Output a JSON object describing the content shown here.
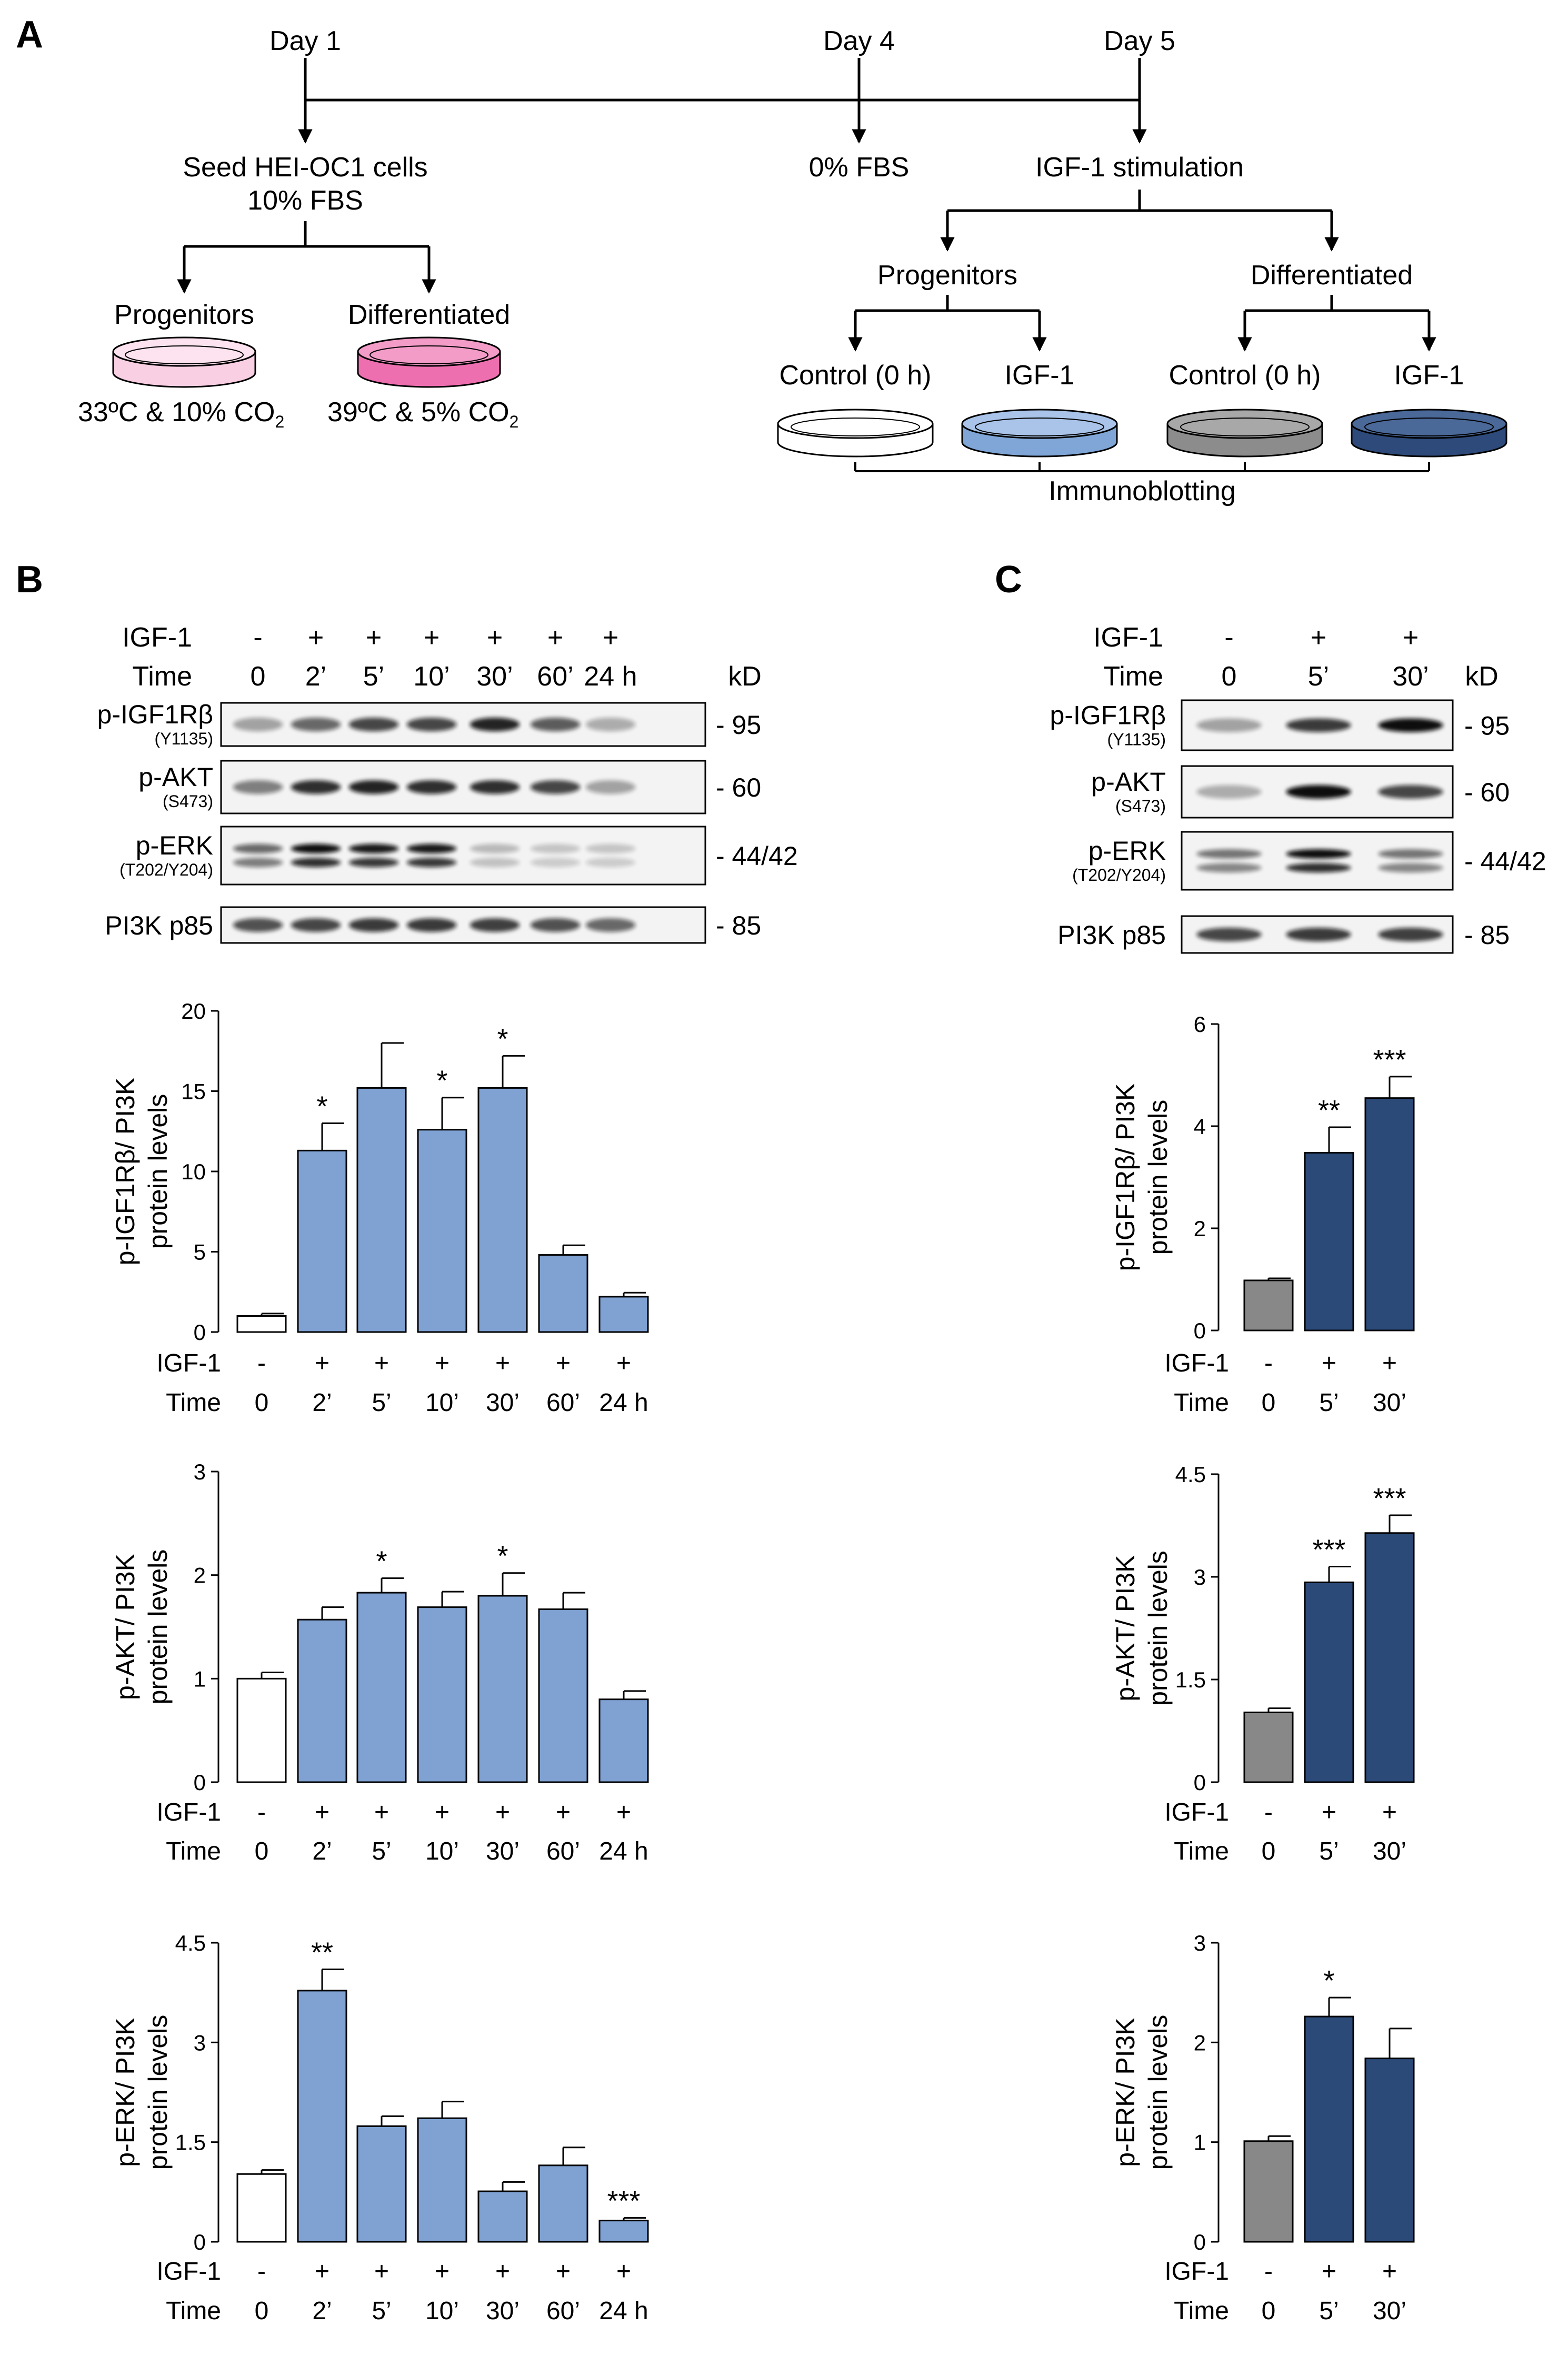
{
  "panels": {
    "A": "A",
    "B": "B",
    "C": "C"
  },
  "timeline": {
    "days": [
      "Day 1",
      "Day 4",
      "Day 5"
    ],
    "seed_line1": "Seed HEI-OC1 cells",
    "seed_line2": "10% FBS",
    "fbs0": "0% FBS",
    "igf_stim": "IGF-1 stimulation",
    "progenitors": "Progenitors",
    "differentiated": "Differentiated",
    "cond_prog": "33ºC & 10% CO",
    "cond_diff": "39ºC & 5% CO",
    "sub2": "2",
    "control": "Control (0 h)",
    "igf1": "IGF-1",
    "immunoblotting": "Immunoblotting",
    "colors": {
      "prog_dish": "#f9cfe3",
      "diff_dish": "#ee6fb0",
      "ctrl_prog": "#ffffff",
      "igf_prog": "#7fa6d6",
      "ctrl_diff": "#8c8c8c",
      "igf_diff": "#2d4a7a"
    }
  },
  "blotB": {
    "igf_label": "IGF-1",
    "time_label": "Time",
    "kd_label": "kD",
    "igf_signs": [
      "-",
      "+",
      "+",
      "+",
      "+",
      "+",
      "+"
    ],
    "times": [
      "0",
      "2’",
      "5’",
      "10’",
      "30’",
      "60’",
      "24 h"
    ],
    "rows": [
      {
        "name": "p-IGF1Rβ",
        "sub": "(Y1135)",
        "kd": "- 95"
      },
      {
        "name": "p-AKT",
        "sub": "(S473)",
        "kd": "- 60"
      },
      {
        "name": "p-ERK",
        "sub": "(T202/Y204)",
        "kd": "- 44/42"
      },
      {
        "name": "PI3K p85",
        "sub": "",
        "kd": "- 85"
      }
    ]
  },
  "blotC": {
    "igf_label": "IGF-1",
    "time_label": "Time",
    "kd_label": "kD",
    "igf_signs": [
      "-",
      "+",
      "+"
    ],
    "times": [
      "0",
      "5’",
      "30’"
    ],
    "rows": [
      {
        "name": "p-IGF1Rβ",
        "sub": "(Y1135)",
        "kd": "- 95"
      },
      {
        "name": "p-AKT",
        "sub": "(S473)",
        "kd": "- 60"
      },
      {
        "name": "p-ERK",
        "sub": "(T202/Y204)",
        "kd": "- 44/42"
      },
      {
        "name": "PI3K p85",
        "sub": "",
        "kd": "- 85"
      }
    ]
  },
  "chart_data": [
    {
      "type": "bar",
      "panel": "B",
      "categories": [
        "0",
        "2’",
        "5’",
        "10’",
        "30’",
        "60’",
        "24 h"
      ],
      "igf_signs": [
        "-",
        "+",
        "+",
        "+",
        "+",
        "+",
        "+"
      ],
      "values": [
        1.0,
        11.3,
        15.2,
        12.6,
        15.2,
        4.8,
        2.2
      ],
      "errors": [
        0.15,
        1.7,
        2.8,
        2.0,
        2.0,
        0.6,
        0.25
      ],
      "stars": [
        "",
        "*",
        "",
        "*",
        "*",
        "",
        ""
      ],
      "ylim": [
        0,
        20
      ],
      "yticks": [
        "0",
        "5",
        "10",
        "15",
        "20"
      ],
      "ylabel_line1": "p-IGF1Rβ/ PI3K",
      "ylabel_line2": "protein levels",
      "row_labels": [
        "IGF-1",
        "Time"
      ],
      "bar_colors": [
        "#ffffff",
        "#7fa2d3",
        "#7fa2d3",
        "#7fa2d3",
        "#7fa2d3",
        "#7fa2d3",
        "#7fa2d3"
      ]
    },
    {
      "type": "bar",
      "panel": "B",
      "categories": [
        "0",
        "2’",
        "5’",
        "10’",
        "30’",
        "60’",
        "24 h"
      ],
      "igf_signs": [
        "-",
        "+",
        "+",
        "+",
        "+",
        "+",
        "+"
      ],
      "values": [
        1.0,
        1.57,
        1.83,
        1.69,
        1.8,
        1.67,
        0.8
      ],
      "errors": [
        0.06,
        0.12,
        0.14,
        0.15,
        0.22,
        0.16,
        0.08
      ],
      "stars": [
        "",
        "",
        "*",
        "",
        "*",
        "",
        ""
      ],
      "ylim": [
        0,
        3
      ],
      "yticks": [
        "0",
        "1",
        "2",
        "3"
      ],
      "ylabel_line1": "p-AKT/ PI3K",
      "ylabel_line2": "protein levels",
      "row_labels": [
        "IGF-1",
        "Time"
      ],
      "bar_colors": [
        "#ffffff",
        "#7fa2d3",
        "#7fa2d3",
        "#7fa2d3",
        "#7fa2d3",
        "#7fa2d3",
        "#7fa2d3"
      ]
    },
    {
      "type": "bar",
      "panel": "B",
      "categories": [
        "0",
        "2’",
        "5’",
        "10’",
        "30’",
        "60’",
        "24 h"
      ],
      "igf_signs": [
        "-",
        "+",
        "+",
        "+",
        "+",
        "+",
        "+"
      ],
      "values": [
        1.02,
        3.78,
        1.74,
        1.86,
        0.76,
        1.15,
        0.32
      ],
      "errors": [
        0.06,
        0.32,
        0.15,
        0.25,
        0.14,
        0.27,
        0.04
      ],
      "stars": [
        "",
        "**",
        "",
        "",
        "",
        "",
        "***"
      ],
      "ylim": [
        0,
        4.5
      ],
      "yticks": [
        "0",
        "1.5",
        "3",
        "4.5"
      ],
      "ylabel_line1": "p-ERK/ PI3K",
      "ylabel_line2": "protein levels",
      "row_labels": [
        "IGF-1",
        "Time"
      ],
      "bar_colors": [
        "#ffffff",
        "#7fa2d3",
        "#7fa2d3",
        "#7fa2d3",
        "#7fa2d3",
        "#7fa2d3",
        "#7fa2d3"
      ]
    },
    {
      "type": "bar",
      "panel": "C",
      "categories": [
        "0",
        "5’",
        "30’"
      ],
      "igf_signs": [
        "-",
        "+",
        "+"
      ],
      "values": [
        0.98,
        3.48,
        4.55
      ],
      "errors": [
        0.04,
        0.5,
        0.42
      ],
      "stars": [
        "",
        "**",
        "***"
      ],
      "ylim": [
        0,
        6
      ],
      "yticks": [
        "0",
        "2",
        "4",
        "6"
      ],
      "ylabel_line1": "p-IGF1Rβ/ PI3K",
      "ylabel_line2": "protein levels",
      "row_labels": [
        "IGF-1",
        "Time"
      ],
      "bar_colors": [
        "#888888",
        "#2c4a78",
        "#2c4a78"
      ]
    },
    {
      "type": "bar",
      "panel": "C",
      "categories": [
        "0",
        "5’",
        "30’"
      ],
      "igf_signs": [
        "-",
        "+",
        "+"
      ],
      "values": [
        1.02,
        2.92,
        3.64
      ],
      "errors": [
        0.06,
        0.23,
        0.26
      ],
      "stars": [
        "",
        "***",
        "***"
      ],
      "ylim": [
        0,
        4.5
      ],
      "yticks": [
        "0",
        "1.5",
        "3",
        "4.5"
      ],
      "ylabel_line1": "p-AKT/ PI3K",
      "ylabel_line2": "protein levels",
      "row_labels": [
        "IGF-1",
        "Time"
      ],
      "bar_colors": [
        "#888888",
        "#2c4a78",
        "#2c4a78"
      ]
    },
    {
      "type": "bar",
      "panel": "C",
      "categories": [
        "0",
        "5’",
        "30’"
      ],
      "igf_signs": [
        "-",
        "+",
        "+"
      ],
      "values": [
        1.01,
        2.26,
        1.84
      ],
      "errors": [
        0.05,
        0.19,
        0.3
      ],
      "stars": [
        "",
        "*",
        ""
      ],
      "ylim": [
        0,
        3
      ],
      "yticks": [
        "0",
        "1",
        "2",
        "3"
      ],
      "ylabel_line1": "p-ERK/ PI3K",
      "ylabel_line2": "protein levels",
      "row_labels": [
        "IGF-1",
        "Time"
      ],
      "bar_colors": [
        "#888888",
        "#2c4a78",
        "#2c4a78"
      ]
    }
  ]
}
